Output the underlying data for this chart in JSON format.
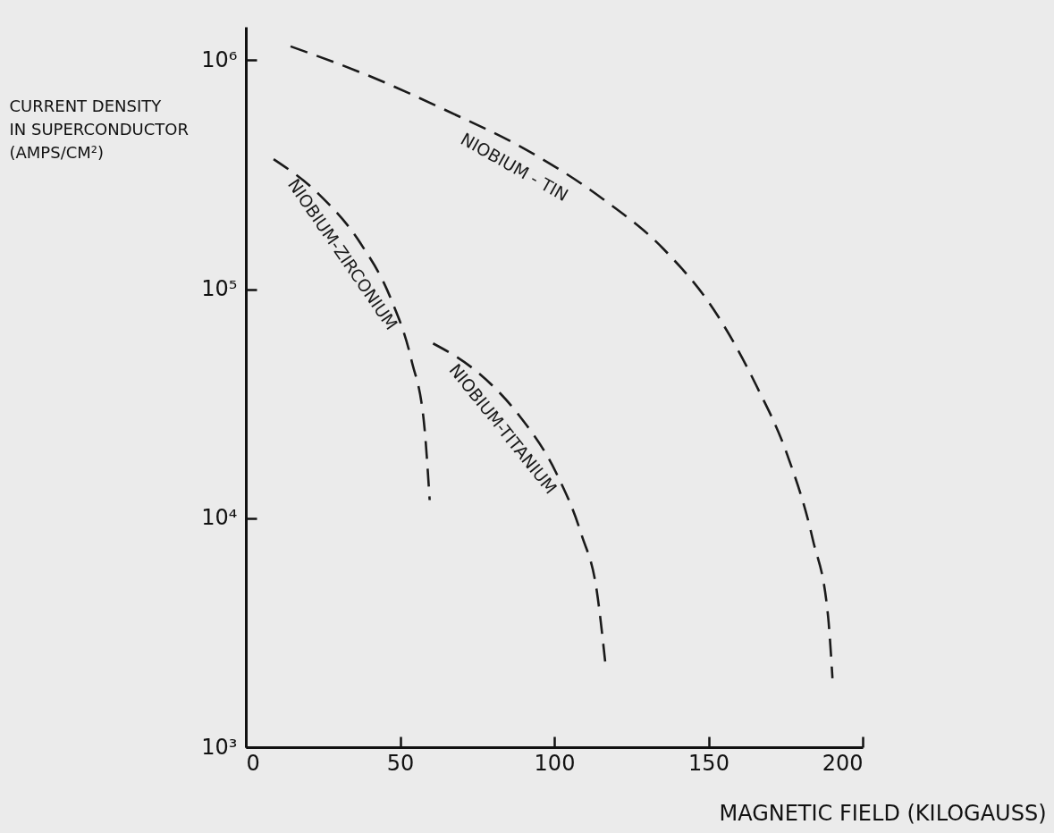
{
  "chart_data": {
    "type": "line",
    "xlabel": "MAGNETIC FIELD (KILOGAUSS)",
    "ylabel": "CURRENT DENSITY IN SUPERCONDUCTOR (AMPS/CM²)",
    "log": "y",
    "grid": false,
    "legend": false,
    "line_style": "dashed",
    "marker": "none",
    "xlim": [
      0,
      200
    ],
    "xticks": [
      0,
      50,
      100,
      150,
      200
    ],
    "ylim": [
      1000,
      1400000
    ],
    "yticks": [
      {
        "value": 1000,
        "label": "10³"
      },
      {
        "value": 10000,
        "label": "10⁴"
      },
      {
        "value": 100000,
        "label": "10⁵"
      },
      {
        "value": 1000000,
        "label": "10⁶"
      }
    ],
    "series": [
      {
        "name": "NIOBIUM - TIN",
        "color": "#1a1a1a",
        "x": [
          14.5,
          40.4,
          65.4,
          90.4,
          115.4,
          135.4,
          152.1,
          165.5,
          175.5,
          183.8,
          188.8,
          190.2
        ],
        "values": [
          1150000,
          850000,
          600000,
          410000,
          250000,
          150000,
          80000,
          38000,
          19000,
          8100,
          3700,
          2000
        ]
      },
      {
        "name": "NIOBIUM-ZIRCONIUM",
        "color": "#1a1a1a",
        "x": [
          9.0,
          23.7,
          37.0,
          47.0,
          53.7,
          57.9,
          59.6
        ],
        "values": [
          370000,
          260000,
          160000,
          91000,
          49000,
          25000,
          12000
        ]
      },
      {
        "name": "NIOBIUM-TITANIUM",
        "color": "#1a1a1a",
        "x": [
          60.7,
          73.7,
          88.7,
          100.4,
          108.8,
          113.8,
          116.6
        ],
        "values": [
          58000,
          45000,
          28000,
          16000,
          8500,
          4800,
          2300
        ]
      }
    ]
  }
}
